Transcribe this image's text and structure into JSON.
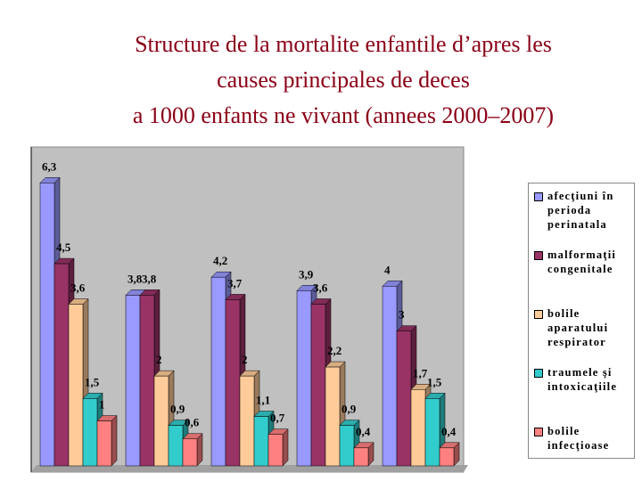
{
  "chart_data": {
    "type": "bar",
    "title": "Structure de la mortalite enfantile d’apres les\ncauses principales de deces\na 1000 enfants ne vivant (annees 2000–2007)",
    "categories": [
      null,
      null,
      null,
      null,
      null
    ],
    "ylim": [
      0,
      7
    ],
    "legend": "right",
    "series": [
      {
        "name": "afecţiuni în perioda perinatala",
        "color": "#9999ff",
        "values": [
          6.3,
          3.8,
          4.2,
          3.9,
          4
        ],
        "value_labels": [
          "6,3",
          "3,8",
          "4,2",
          "3,9",
          "4"
        ]
      },
      {
        "name": "malformaţii congenitale",
        "color": "#993366",
        "values": [
          4.5,
          3.8,
          3.7,
          3.6,
          3
        ],
        "value_labels": [
          "4,5",
          "3,8",
          "3,7",
          "3,6",
          "3"
        ]
      },
      {
        "name": "bolile aparatului respirator",
        "color": "#ffcc99",
        "values": [
          3.6,
          2,
          2,
          2.2,
          1.7
        ],
        "value_labels": [
          "3,6",
          "2",
          "2",
          "2,2",
          "1,7"
        ]
      },
      {
        "name": "traumele şi intoxicaţiile",
        "color": "#33cccc",
        "values": [
          1.5,
          0.9,
          1.1,
          0.9,
          1.5
        ],
        "value_labels": [
          "1,5",
          "0,9",
          "1,1",
          "0,9",
          "1,5"
        ]
      },
      {
        "name": "bolile infecţioase",
        "color": "#ff8080",
        "values": [
          1,
          0.6,
          0.7,
          0.4,
          0.4
        ],
        "value_labels": [
          "1",
          "0,6",
          "0,7",
          "0,4",
          "0,4"
        ]
      }
    ]
  }
}
